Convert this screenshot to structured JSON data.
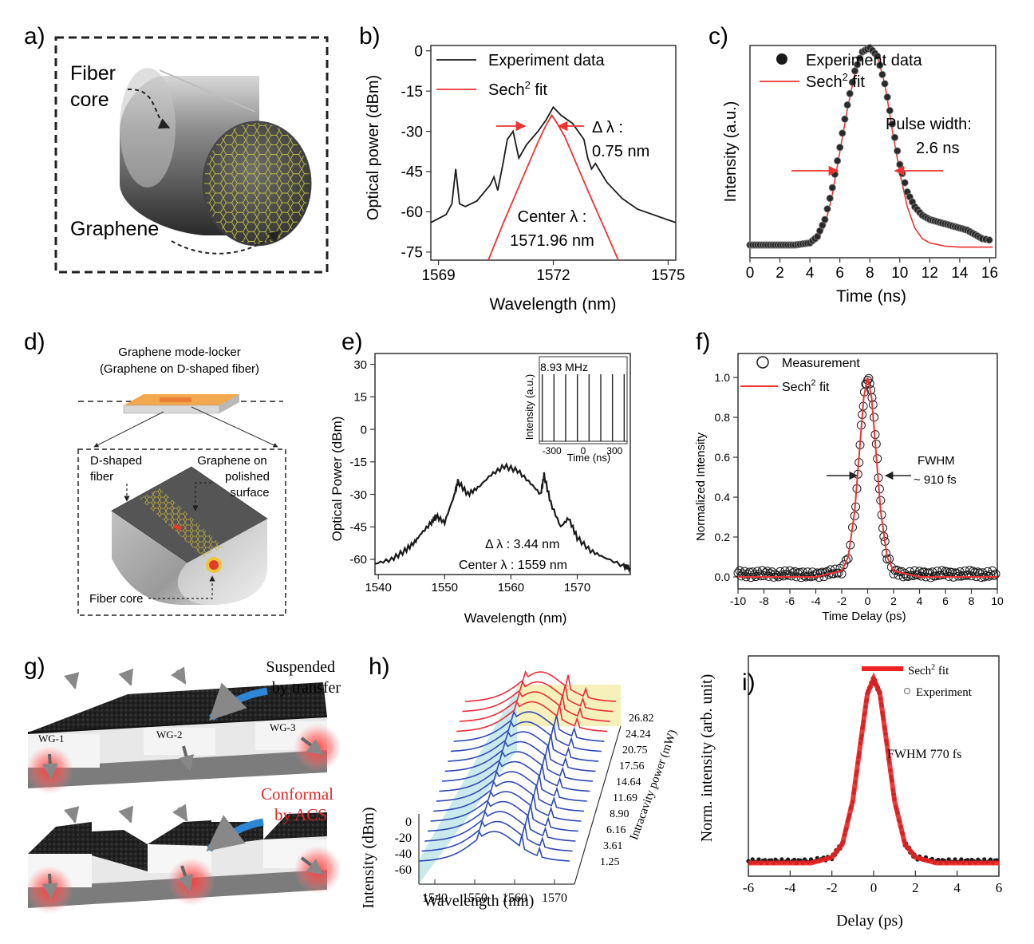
{
  "panels": {
    "a": {
      "label": "a)",
      "fiber_core": [
        "Fiber",
        "core"
      ],
      "graphene": "Graphene"
    },
    "b": {
      "label": "b)",
      "ylabel": "Optical power (dBm)",
      "xlabel": "Wavelength (nm)",
      "legend": [
        "Experiment data",
        "Sech",
        "2",
        " fit"
      ],
      "delta_lambda": [
        "Δ λ :",
        "0.75 nm"
      ],
      "center": [
        "Center λ :",
        "1571.96 nm"
      ]
    },
    "c": {
      "label": "c)",
      "ylabel": "Intensity (a.u.)",
      "xlabel": "Time (ns)",
      "legend": [
        "Experiment data",
        "Sech",
        "2",
        " fit"
      ],
      "pulse": [
        "Pulse width:",
        "2.6 ns"
      ]
    },
    "d": {
      "label": "d)",
      "title": [
        "Graphene mode-locker",
        "(Graphene on D-shaped fiber)"
      ],
      "dshaped": [
        "D-shaped",
        "fiber"
      ],
      "polished": [
        "Graphene on",
        "polished",
        "surface"
      ],
      "core": "Fiber core"
    },
    "e": {
      "label": "e)",
      "ylabel": "Optical Power (dBm)",
      "xlabel": "Wavelength (nm)",
      "delta": "Δ λ : 3.44 nm",
      "center": "Center λ : 1559 nm",
      "inset": {
        "freq": "8.93 MHz",
        "ylabel": "Intensity (a.u.)",
        "xlabel": "Time (ns)"
      }
    },
    "f": {
      "label": "f)",
      "ylabel": "Normalized Intensity",
      "xlabel": "Time Delay (ps)",
      "legend": [
        "Measurement",
        "Sech",
        "2",
        " fit"
      ],
      "fwhm": [
        "FWHM",
        "~ 910 fs"
      ]
    },
    "g": {
      "label": "g)",
      "suspended": [
        "Suspended",
        "by transfer"
      ],
      "conformal": [
        "Conformal",
        "by ACS"
      ],
      "wg": [
        "WG-1",
        "WG-2",
        "WG-3"
      ]
    },
    "h": {
      "label": "h)",
      "ylabel": "Intensity (dBm)",
      "xlabel": "Wavelength (nm)",
      "zlabel": "Intracavity power (mW)"
    },
    "i": {
      "label": "i)",
      "ylabel": "Norm. intensity (arb. unit)",
      "xlabel": "Delay (ps)",
      "legend": [
        "Sech",
        "2",
        " fit",
        "Experiment"
      ],
      "fwhm": "FWHM 770 fs"
    }
  },
  "chart_data": [
    {
      "panel": "b",
      "type": "line",
      "xlabel": "Wavelength (nm)",
      "ylabel": "Optical power (dBm)",
      "xlim": [
        1568.8,
        1575.2
      ],
      "ylim": [
        -78,
        2
      ],
      "xticks": [
        1569,
        1572,
        1575
      ],
      "yticks": [
        0,
        -15,
        -30,
        -45,
        -60,
        -75
      ],
      "series": [
        {
          "name": "Experiment data",
          "color": "#1a1a1a",
          "x": [
            1568.8,
            1569.2,
            1569.35,
            1569.45,
            1569.55,
            1569.7,
            1570.0,
            1570.35,
            1570.45,
            1570.55,
            1570.7,
            1570.8,
            1570.95,
            1571.1,
            1571.3,
            1571.6,
            1571.8,
            1572.0,
            1572.2,
            1572.5,
            1572.8,
            1572.9,
            1573.0,
            1573.1,
            1573.4,
            1573.8,
            1574.2,
            1574.6,
            1575.0,
            1575.2
          ],
          "y": [
            -64,
            -61,
            -57,
            -44,
            -57,
            -58,
            -56,
            -50,
            -47,
            -52,
            -41,
            -33,
            -30,
            -40,
            -35,
            -30,
            -26,
            -21,
            -24,
            -27,
            -33,
            -40,
            -44,
            -42,
            -49,
            -55,
            -59,
            -61,
            -63,
            -64
          ]
        },
        {
          "name": "Sech2 fit",
          "color": "#ee3333",
          "x": [
            1570.3,
            1570.7,
            1571.0,
            1571.3,
            1571.6,
            1571.8,
            1571.96,
            1572.1,
            1572.3,
            1572.6,
            1572.9,
            1573.3,
            1573.7
          ],
          "y": [
            -78,
            -64,
            -54,
            -44,
            -34,
            -28,
            -24,
            -27,
            -32,
            -42,
            -52,
            -65,
            -78
          ]
        }
      ]
    },
    {
      "panel": "c",
      "type": "scatter",
      "xlabel": "Time (ns)",
      "ylabel": "Intensity (a.u.)",
      "xlim": [
        0,
        16.4
      ],
      "ylim": [
        0,
        1.0
      ],
      "xticks": [
        0,
        2,
        4,
        6,
        8,
        10,
        12,
        14,
        16
      ],
      "series": [
        {
          "name": "Experiment data",
          "color": "#1a1a1a",
          "x": [
            0,
            0.5,
            1,
            1.5,
            2,
            2.5,
            3,
            3.5,
            4,
            4.5,
            5,
            5.5,
            6,
            6.5,
            7,
            7.5,
            8,
            8.5,
            9,
            9.5,
            10,
            10.5,
            11,
            11.5,
            12,
            12.5,
            13,
            13.5,
            14,
            14.5,
            15,
            15.5,
            16.2
          ],
          "y": [
            0.06,
            0.06,
            0.06,
            0.06,
            0.06,
            0.06,
            0.06,
            0.065,
            0.07,
            0.1,
            0.18,
            0.33,
            0.52,
            0.72,
            0.88,
            0.97,
            0.99,
            0.95,
            0.82,
            0.63,
            0.44,
            0.31,
            0.24,
            0.2,
            0.18,
            0.17,
            0.16,
            0.15,
            0.14,
            0.13,
            0.11,
            0.09,
            0.08
          ]
        },
        {
          "name": "Sech2 fit",
          "color": "#ee3333",
          "x": [
            0,
            1,
            2,
            3,
            4,
            4.5,
            5,
            5.5,
            6,
            6.5,
            7,
            7.5,
            8,
            8.5,
            9,
            9.5,
            10,
            10.5,
            11,
            11.5,
            12,
            13,
            14,
            16.2
          ],
          "y": [
            0.05,
            0.05,
            0.05,
            0.052,
            0.06,
            0.08,
            0.15,
            0.3,
            0.5,
            0.7,
            0.87,
            0.97,
            0.99,
            0.95,
            0.82,
            0.6,
            0.4,
            0.24,
            0.14,
            0.09,
            0.07,
            0.055,
            0.05,
            0.05
          ]
        }
      ]
    },
    {
      "panel": "e",
      "type": "line",
      "xlabel": "Wavelength (nm)",
      "ylabel": "Optical Power (dBm)",
      "xlim": [
        1539.5,
        1578
      ],
      "ylim": [
        -67,
        35
      ],
      "xticks": [
        1540,
        1550,
        1560,
        1570
      ],
      "yticks": [
        30,
        15,
        0,
        -15,
        -30,
        -45,
        -60
      ],
      "series": [
        {
          "name": "spectrum",
          "color": "#1a1a1a",
          "x": [
            1539.5,
            1542,
            1544,
            1545.5,
            1546.5,
            1548,
            1548.7,
            1550,
            1551.5,
            1552,
            1553.5,
            1555,
            1557,
            1559,
            1561,
            1563,
            1564.5,
            1565,
            1566,
            1567.5,
            1568.7,
            1570,
            1572,
            1574,
            1577,
            1578
          ],
          "y": [
            -62,
            -60,
            -56,
            -52,
            -48,
            -43,
            -40,
            -43,
            -30,
            -24,
            -30,
            -27,
            -21,
            -17,
            -19,
            -25,
            -30,
            -21,
            -34,
            -45,
            -41,
            -50,
            -56,
            -59,
            -63,
            -64
          ]
        }
      ],
      "inset": {
        "xlim": [
          -420,
          420
        ],
        "xticks": [
          -300,
          0,
          300
        ],
        "pulse_spacing_ns": 112,
        "pulses_x": [
          -392,
          -280,
          -168,
          -56,
          56,
          168,
          280,
          392
        ]
      }
    },
    {
      "panel": "f",
      "type": "scatter",
      "xlabel": "Time Delay (ps)",
      "ylabel": "Normalized Intensity",
      "xlim": [
        -10,
        10
      ],
      "ylim": [
        -0.06,
        1.12
      ],
      "xticks": [
        -10,
        -8,
        -6,
        -4,
        -2,
        0,
        2,
        4,
        6,
        8,
        10
      ],
      "yticks": [
        0.0,
        0.2,
        0.4,
        0.6,
        0.8,
        1.0
      ],
      "series": [
        {
          "name": "Measurement",
          "color": "#1a1a1a",
          "x": [
            -10,
            -9,
            -8,
            -7,
            -6,
            -5,
            -4,
            -3,
            -2,
            -1.5,
            -1,
            -0.75,
            -0.5,
            -0.25,
            0,
            0.25,
            0.5,
            0.75,
            1,
            1.25,
            1.5,
            2,
            3,
            4,
            5,
            6,
            7,
            8,
            9,
            10
          ],
          "y": [
            0.02,
            0.01,
            0.02,
            0.01,
            0.02,
            0.01,
            0.01,
            0.02,
            0.03,
            0.1,
            0.3,
            0.5,
            0.75,
            0.93,
            1.0,
            0.95,
            0.8,
            0.58,
            0.37,
            0.2,
            0.1,
            0.03,
            0.01,
            0.02,
            0.01,
            0.02,
            0.01,
            0.02,
            0.01,
            0.02
          ]
        },
        {
          "name": "Sech2 fit",
          "color": "#ee3333",
          "x": [
            -10,
            -4,
            -2,
            -1.5,
            -1,
            -0.6,
            -0.3,
            0,
            0.3,
            0.6,
            1,
            1.5,
            2,
            4,
            10
          ],
          "y": [
            0,
            0,
            0.03,
            0.1,
            0.33,
            0.66,
            0.9,
            1.0,
            0.9,
            0.66,
            0.33,
            0.1,
            0.03,
            0,
            0
          ]
        }
      ]
    },
    {
      "panel": "h",
      "type": "line",
      "xlabel": "Wavelength (nm)",
      "ylabel": "Intensity (dBm)",
      "zlabel": "Intracavity power (mW)",
      "xticks": [
        1540,
        1550,
        1560,
        1570
      ],
      "yticks": [
        0,
        -20,
        -40,
        -60
      ],
      "z_values": [
        1.25,
        3.61,
        6.16,
        8.9,
        11.69,
        14.64,
        17.56,
        20.75,
        24.24,
        26.82
      ],
      "z_labels": [
        "1.25",
        "3.61",
        "6.16",
        "8.90",
        "11.69",
        "14.64",
        "17.56",
        "20.75",
        "24.24",
        "26.82"
      ],
      "series_count": 17,
      "colors": {
        "low_power": "#2f49b5",
        "high_power": "#ee2a3a"
      }
    },
    {
      "panel": "i",
      "type": "scatter",
      "xlabel": "Delay (ps)",
      "ylabel": "Norm. intensity (arb. unit)",
      "xlim": [
        -6,
        6
      ],
      "ylim": [
        -0.05,
        1.12
      ],
      "xticks": [
        -6,
        -4,
        -2,
        0,
        2,
        4,
        6
      ],
      "series": [
        {
          "name": "Experiment",
          "color": "#1a1a1a",
          "x": [
            -6,
            -5,
            -4,
            -3,
            -2,
            -1.5,
            -1,
            -0.6,
            -0.3,
            0,
            0.3,
            0.6,
            1,
            1.5,
            2,
            3,
            4,
            5,
            6
          ],
          "y": [
            0.03,
            0.03,
            0.03,
            0.03,
            0.05,
            0.12,
            0.35,
            0.68,
            0.92,
            1.0,
            0.92,
            0.68,
            0.35,
            0.12,
            0.05,
            0.03,
            0.03,
            0.03,
            0.03
          ]
        },
        {
          "name": "Sech2 fit",
          "color": "#ee2222",
          "x": [
            -6,
            -3,
            -2,
            -1.5,
            -1,
            -0.6,
            -0.3,
            0,
            0.3,
            0.6,
            1,
            1.5,
            2,
            3,
            6
          ],
          "y": [
            0.02,
            0.02,
            0.05,
            0.12,
            0.35,
            0.68,
            0.92,
            1.0,
            0.92,
            0.68,
            0.35,
            0.12,
            0.05,
            0.02,
            0.02
          ]
        }
      ]
    }
  ]
}
